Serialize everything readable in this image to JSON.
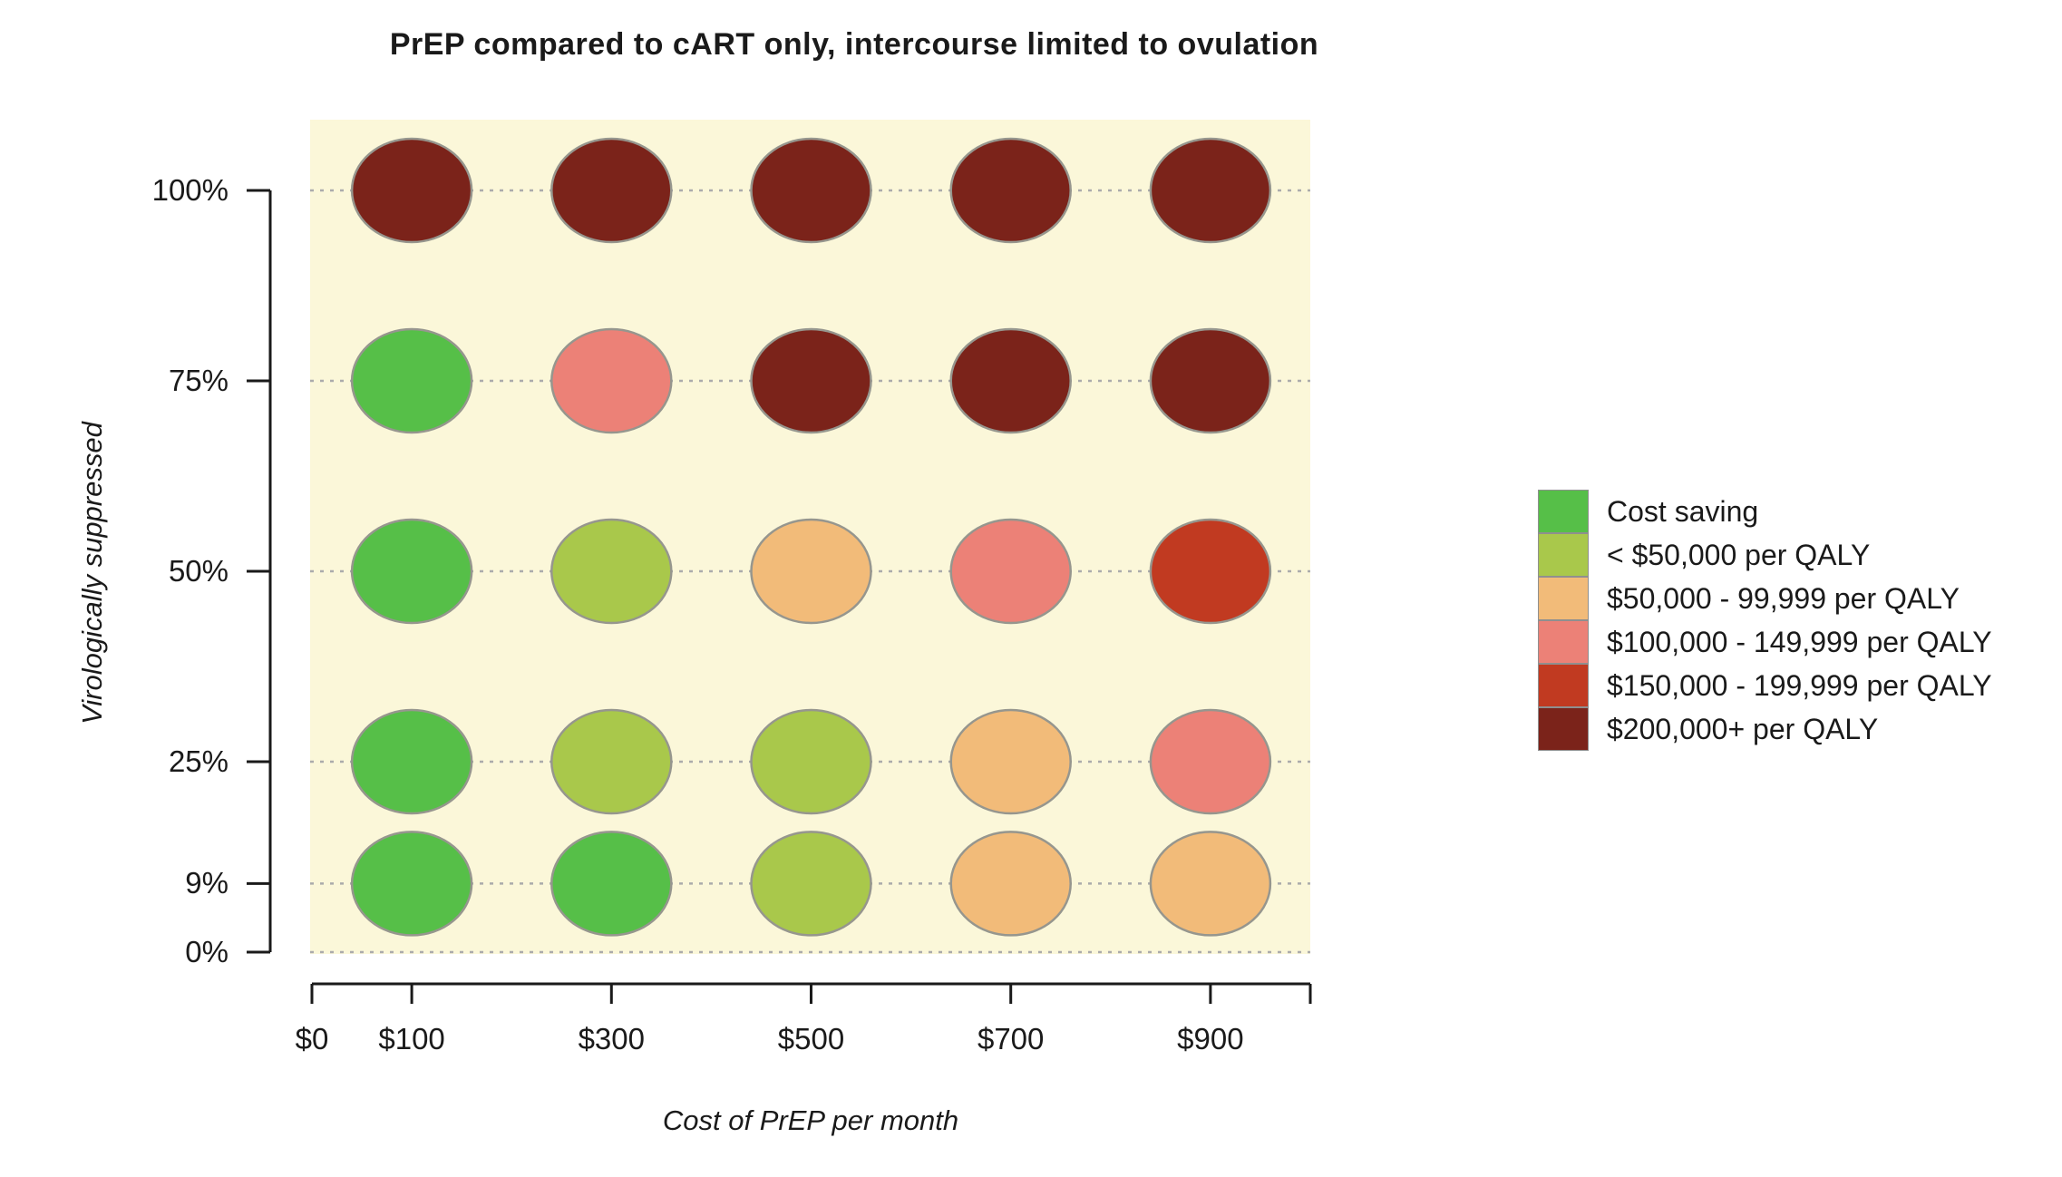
{
  "chart_data": {
    "type": "heatmap",
    "title": "PrEP compared to cART only, intercourse limited to ovulation",
    "xlabel": "Cost of PrEP per month",
    "ylabel": "Virologically suppressed",
    "x_ticks": [
      {
        "value": 0,
        "label": "$0"
      },
      {
        "value": 100,
        "label": "$100"
      },
      {
        "value": 300,
        "label": "$300"
      },
      {
        "value": 500,
        "label": "$500"
      },
      {
        "value": 700,
        "label": "$700"
      },
      {
        "value": 900,
        "label": "$900"
      }
    ],
    "y_ticks": [
      {
        "value": 100,
        "label": "100%"
      },
      {
        "value": 75,
        "label": "75%"
      },
      {
        "value": 50,
        "label": "50%"
      },
      {
        "value": 25,
        "label": "25%"
      },
      {
        "value": 9,
        "label": "9%"
      },
      {
        "value": 0,
        "label": "0%"
      }
    ],
    "x_range": [
      0,
      1000
    ],
    "y_range": [
      0,
      109
    ],
    "grid": "dashed-horizontal",
    "legend_position": "right",
    "plot_bg": "#fbf7d9",
    "gridline_color": "#ababab",
    "axis_color": "#1a1a1a",
    "point_outline_color": "#96968e",
    "legend": {
      "items": [
        {
          "key": "cost_saving",
          "label": "Cost saving",
          "color": "#56bf48"
        },
        {
          "key": "lt_50k",
          "label": "< $50,000 per QALY",
          "color": "#a9c84b"
        },
        {
          "key": "50k_99k",
          "label": "$50,000 - 99,999 per QALY",
          "color": "#f2bb79"
        },
        {
          "key": "100k_149k",
          "label": "$100,000 - 149,999 per QALY",
          "color": "#ec8177"
        },
        {
          "key": "150k_199k",
          "label": "$150,000 - 199,999 per QALY",
          "color": "#c13a21"
        },
        {
          "key": "200k_plus",
          "label": "$200,000+ per QALY",
          "color": "#7b231a"
        }
      ]
    },
    "matrix": {
      "x_values": [
        100,
        300,
        500,
        700,
        900
      ],
      "rows": [
        {
          "y": 100,
          "categories": [
            "200k_plus",
            "200k_plus",
            "200k_plus",
            "200k_plus",
            "200k_plus"
          ]
        },
        {
          "y": 75,
          "categories": [
            "cost_saving",
            "100k_149k",
            "200k_plus",
            "200k_plus",
            "200k_plus"
          ]
        },
        {
          "y": 50,
          "categories": [
            "cost_saving",
            "lt_50k",
            "50k_99k",
            "100k_149k",
            "150k_199k"
          ]
        },
        {
          "y": 25,
          "categories": [
            "cost_saving",
            "lt_50k",
            "lt_50k",
            "50k_99k",
            "100k_149k"
          ]
        },
        {
          "y": 9,
          "categories": [
            "cost_saving",
            "cost_saving",
            "lt_50k",
            "50k_99k",
            "50k_99k"
          ]
        }
      ]
    }
  }
}
